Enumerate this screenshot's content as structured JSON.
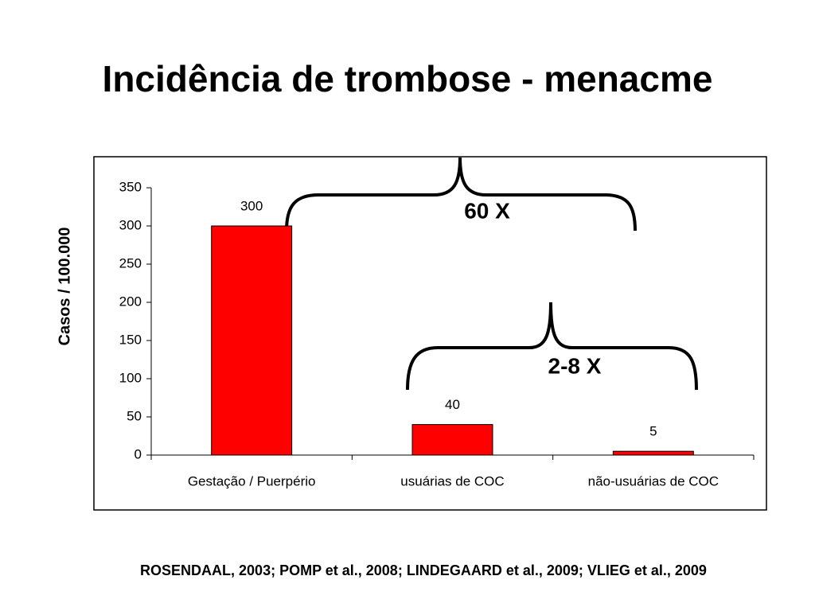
{
  "chart_data": {
    "type": "bar",
    "title": "Incidência de trombose - menacme",
    "ylabel": "Casos / 100.000",
    "categories": [
      "Gestação / Puerpério",
      "usuárias de COC",
      "não-usuárias de COC"
    ],
    "values": [
      300,
      40,
      5
    ],
    "color": "#ff0000",
    "ylim": [
      0,
      350
    ],
    "yticks": [
      0,
      50,
      100,
      150,
      200,
      250,
      300,
      350
    ],
    "annotations": [
      "60 X",
      "2-8 X"
    ],
    "source": "ROSENDAAL, 2003; POMP et al., 2008; LINDEGAARD et al., 2009; VLIEG et al., 2009"
  }
}
